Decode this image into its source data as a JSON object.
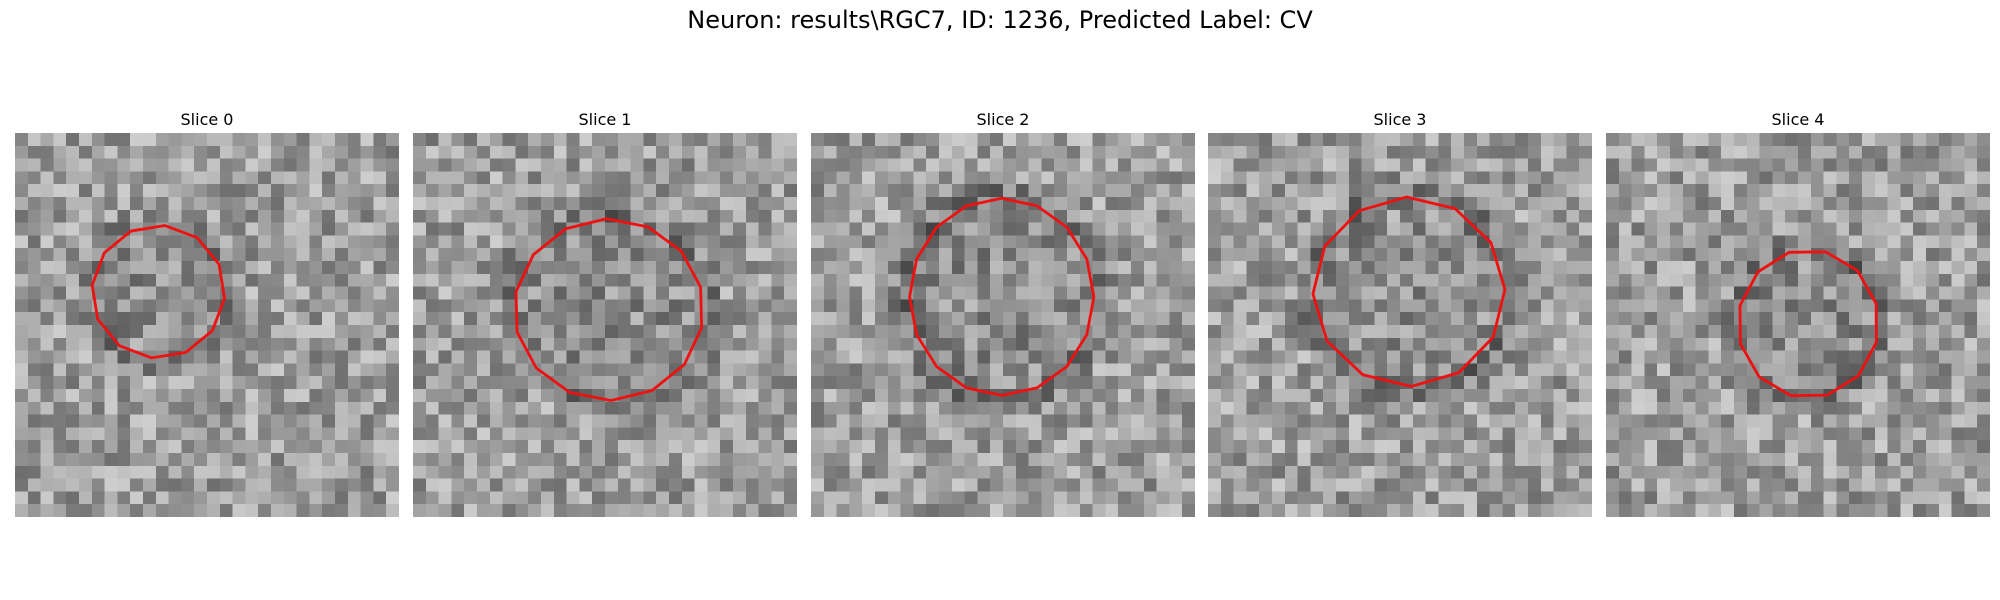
{
  "figure": {
    "title": "Neuron: results\\RGC7, ID: 1236, Predicted Label: CV"
  },
  "panels": [
    {
      "title": "Slice 0"
    },
    {
      "title": "Slice 1"
    },
    {
      "title": "Slice 2"
    },
    {
      "title": "Slice 3"
    },
    {
      "title": "Slice 4"
    }
  ],
  "style": {
    "contour_color": "#ee1111",
    "pixel_grid": 30
  }
}
